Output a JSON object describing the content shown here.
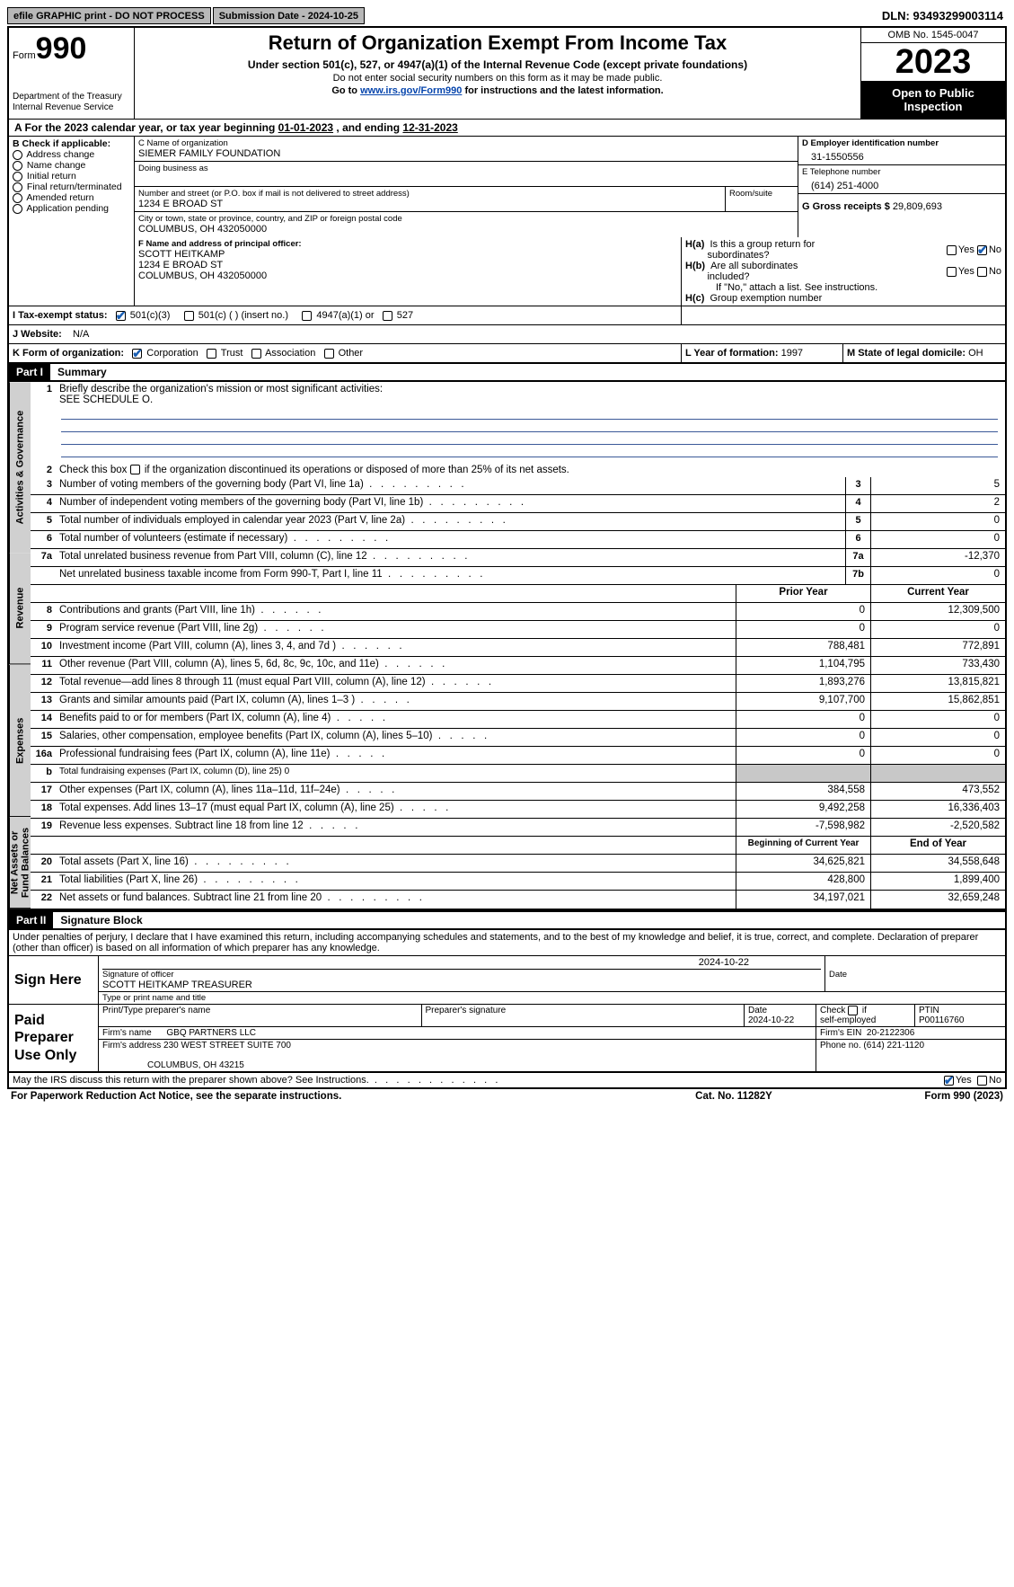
{
  "top": {
    "efile": "efile GRAPHIC print - DO NOT PROCESS",
    "submission": "Submission Date - 2024-10-25",
    "dln_label": "DLN:",
    "dln": "93493299003114"
  },
  "header": {
    "form_word": "Form",
    "form_num": "990",
    "dept": "Department of the Treasury\nInternal Revenue Service",
    "title": "Return of Organization Exempt From Income Tax",
    "sub1": "Under section 501(c), 527, or 4947(a)(1) of the Internal Revenue Code (except private foundations)",
    "sub2": "Do not enter social security numbers on this form as it may be made public.",
    "sub3_pre": "Go to ",
    "sub3_link": "www.irs.gov/Form990",
    "sub3_post": " for instructions and the latest information.",
    "omb": "OMB No. 1545-0047",
    "year": "2023",
    "open": "Open to Public Inspection"
  },
  "line_a": {
    "label": "A For the 2023 calendar year, or tax year beginning ",
    "begin": "01-01-2023",
    "mid": "   , and ending ",
    "end": "12-31-2023"
  },
  "box_b": {
    "title": "B Check if applicable:",
    "items": [
      "Address change",
      "Name change",
      "Initial return",
      "Final return/terminated",
      "Amended return",
      "Application pending"
    ]
  },
  "box_c": {
    "name_label": "C Name of organization",
    "name": "SIEMER FAMILY FOUNDATION",
    "dba_label": "Doing business as",
    "street_label": "Number and street (or P.O. box if mail is not delivered to street address)",
    "street": "1234 E BROAD ST",
    "room_label": "Room/suite",
    "city_label": "City or town, state or province, country, and ZIP or foreign postal code",
    "city": "COLUMBUS, OH  432050000"
  },
  "box_d": {
    "label": "D Employer identification number",
    "value": "31-1550556"
  },
  "box_e": {
    "label": "E Telephone number",
    "value": "(614) 251-4000"
  },
  "box_g": {
    "label": "G Gross receipts $",
    "value": "29,809,693"
  },
  "box_f": {
    "label": "F  Name and address of principal officer:",
    "name": "SCOTT HEITKAMP",
    "street": "1234 E BROAD ST",
    "city": "COLUMBUS, OH  432050000"
  },
  "box_h": {
    "a_label": "H(a)  Is this a group return for subordinates?",
    "b_label": "H(b)  Are all subordinates included?",
    "b_note": "If \"No,\" attach a list. See instructions.",
    "c_label": "H(c)  Group exemption number",
    "yes": "Yes",
    "no": "No"
  },
  "box_i": {
    "label": "I   Tax-exempt status:",
    "opt1": "501(c)(3)",
    "opt2": "501(c) (  ) (insert no.)",
    "opt3": "4947(a)(1) or",
    "opt4": "527"
  },
  "box_j": {
    "label": "J   Website:",
    "value": "N/A"
  },
  "box_k": {
    "label": "K Form of organization:",
    "opts": [
      "Corporation",
      "Trust",
      "Association",
      "Other"
    ]
  },
  "box_l": {
    "label": "L Year of formation:",
    "value": "1997"
  },
  "box_m": {
    "label": "M State of legal domicile:",
    "value": "OH"
  },
  "parts": {
    "p1": "Part I",
    "p1_title": "Summary",
    "p2": "Part II",
    "p2_title": "Signature Block"
  },
  "vtabs": {
    "g1": "Activities & Governance",
    "g2": "Revenue",
    "g3": "Expenses",
    "g4": "Net Assets or Fund Balances"
  },
  "summary": {
    "line1": "Briefly describe the organization's mission or most significant activities:",
    "line1_val": "SEE SCHEDULE O.",
    "line2": "Check this box      if the organization discontinued its operations or disposed of more than 25% of its net assets.",
    "lines_gov": [
      {
        "n": "3",
        "d": "Number of voting members of the governing body (Part VI, line 1a)",
        "box": "3",
        "v": "5"
      },
      {
        "n": "4",
        "d": "Number of independent voting members of the governing body (Part VI, line 1b)",
        "box": "4",
        "v": "2"
      },
      {
        "n": "5",
        "d": "Total number of individuals employed in calendar year 2023 (Part V, line 2a)",
        "box": "5",
        "v": "0"
      },
      {
        "n": "6",
        "d": "Total number of volunteers (estimate if necessary)",
        "box": "6",
        "v": "0"
      },
      {
        "n": "7a",
        "d": "Total unrelated business revenue from Part VIII, column (C), line 12",
        "box": "7a",
        "v": "-12,370"
      },
      {
        "n": "",
        "d": "Net unrelated business taxable income from Form 990-T, Part I, line 11",
        "box": "7b",
        "v": "0"
      }
    ],
    "hdr_prior": "Prior Year",
    "hdr_curr": "Current Year",
    "lines_rev": [
      {
        "n": "8",
        "d": "Contributions and grants (Part VIII, line 1h)",
        "p": "0",
        "c": "12,309,500"
      },
      {
        "n": "9",
        "d": "Program service revenue (Part VIII, line 2g)",
        "p": "0",
        "c": "0"
      },
      {
        "n": "10",
        "d": "Investment income (Part VIII, column (A), lines 3, 4, and 7d )",
        "p": "788,481",
        "c": "772,891"
      },
      {
        "n": "11",
        "d": "Other revenue (Part VIII, column (A), lines 5, 6d, 8c, 9c, 10c, and 11e)",
        "p": "1,104,795",
        "c": "733,430"
      },
      {
        "n": "12",
        "d": "Total revenue—add lines 8 through 11 (must equal Part VIII, column (A), line 12)",
        "p": "1,893,276",
        "c": "13,815,821"
      }
    ],
    "lines_exp": [
      {
        "n": "13",
        "d": "Grants and similar amounts paid (Part IX, column (A), lines 1–3 )",
        "p": "9,107,700",
        "c": "15,862,851"
      },
      {
        "n": "14",
        "d": "Benefits paid to or for members (Part IX, column (A), line 4)",
        "p": "0",
        "c": "0"
      },
      {
        "n": "15",
        "d": "Salaries, other compensation, employee benefits (Part IX, column (A), lines 5–10)",
        "p": "0",
        "c": "0"
      },
      {
        "n": "16a",
        "d": "Professional fundraising fees (Part IX, column (A), line 11e)",
        "p": "0",
        "c": "0"
      },
      {
        "n": "b",
        "d": "Total fundraising expenses (Part IX, column (D), line 25) 0",
        "p": "GRAY",
        "c": "GRAY"
      },
      {
        "n": "17",
        "d": "Other expenses (Part IX, column (A), lines 11a–11d, 11f–24e)",
        "p": "384,558",
        "c": "473,552"
      },
      {
        "n": "18",
        "d": "Total expenses. Add lines 13–17 (must equal Part IX, column (A), line 25)",
        "p": "9,492,258",
        "c": "16,336,403"
      },
      {
        "n": "19",
        "d": "Revenue less expenses. Subtract line 18 from line 12",
        "p": "-7,598,982",
        "c": "-2,520,582"
      }
    ],
    "hdr_begin": "Beginning of Current Year",
    "hdr_end": "End of Year",
    "lines_net": [
      {
        "n": "20",
        "d": "Total assets (Part X, line 16)",
        "p": "34,625,821",
        "c": "34,558,648"
      },
      {
        "n": "21",
        "d": "Total liabilities (Part X, line 26)",
        "p": "428,800",
        "c": "1,899,400"
      },
      {
        "n": "22",
        "d": "Net assets or fund balances. Subtract line 21 from line 20",
        "p": "34,197,021",
        "c": "32,659,248"
      }
    ]
  },
  "sig": {
    "penalties": "Under penalties of perjury, I declare that I have examined this return, including accompanying schedules and statements, and to the best of my knowledge and belief, it is true, correct, and complete. Declaration of preparer (other than officer) is based on all information of which preparer has any knowledge.",
    "sign_here": "Sign Here",
    "sig_officer_label": "Signature of officer",
    "officer": "SCOTT HEITKAMP TREASURER",
    "type_label": "Type or print name and title",
    "date_label": "Date",
    "date1": "2024-10-22",
    "paid": "Paid Preparer Use Only",
    "prep_name_label": "Print/Type preparer's name",
    "prep_sig_label": "Preparer's signature",
    "prep_date_label": "Date",
    "prep_date": "2024-10-22",
    "self_emp": "Check       if self-employed",
    "ptin_label": "PTIN",
    "ptin": "P00116760",
    "firm_name_label": "Firm's name",
    "firm_name": "GBQ PARTNERS LLC",
    "firm_ein_label": "Firm's EIN",
    "firm_ein": "20-2122306",
    "firm_addr_label": "Firm's address",
    "firm_addr1": "230 WEST STREET SUITE 700",
    "firm_addr2": "COLUMBUS, OH  43215",
    "firm_phone_label": "Phone no.",
    "firm_phone": "(614) 221-1120",
    "may_irs": "May the IRS discuss this return with the preparer shown above? See Instructions."
  },
  "footer": {
    "left": "For Paperwork Reduction Act Notice, see the separate instructions.",
    "mid": "Cat. No. 11282Y",
    "right": "Form 990 (2023)"
  }
}
